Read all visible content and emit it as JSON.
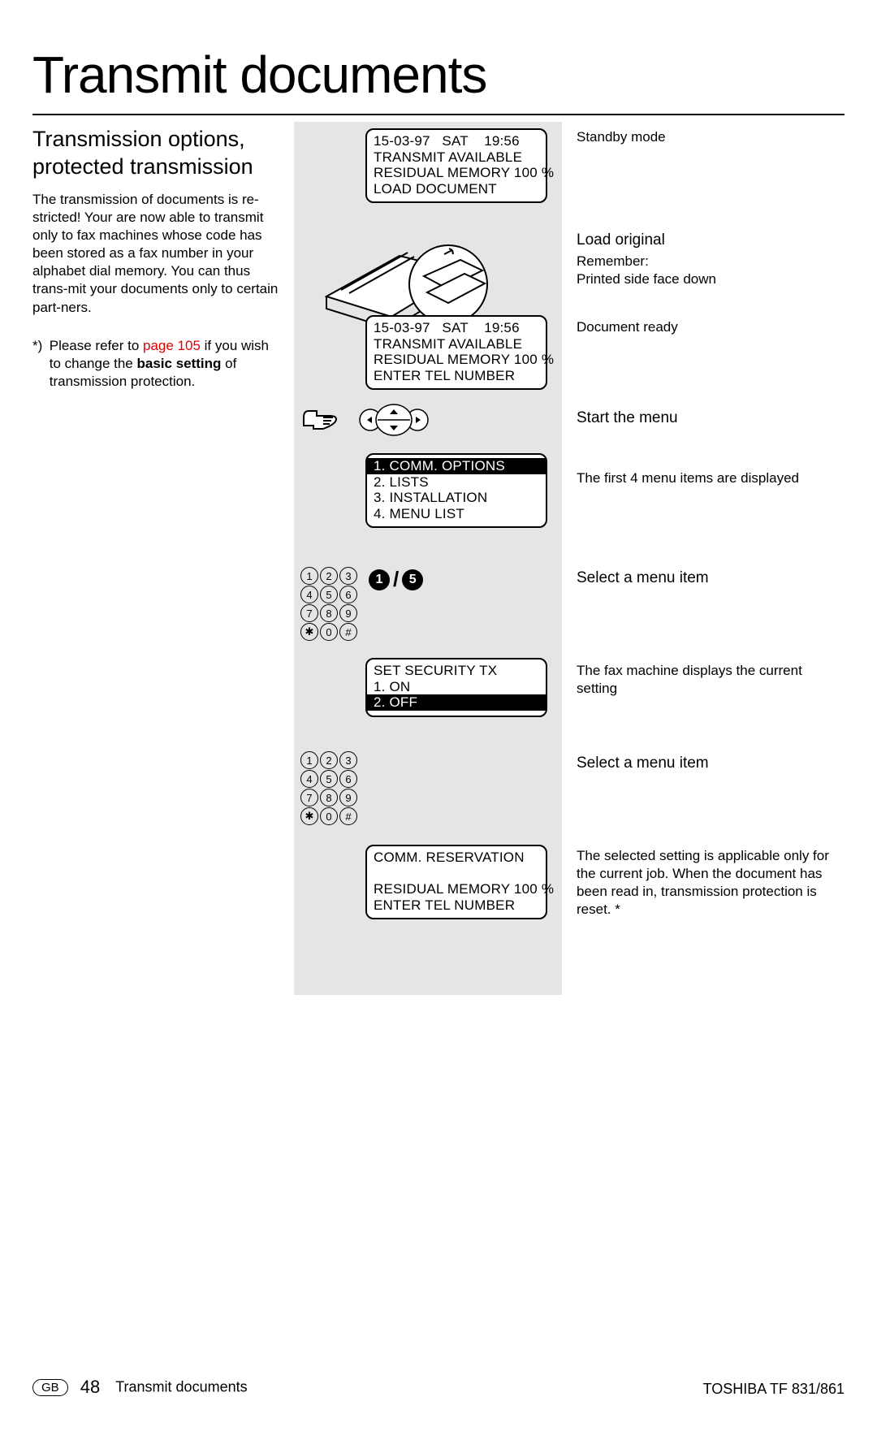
{
  "title": "Transmit documents",
  "subtitle_l1": "Transmission options,",
  "subtitle_l2": "protected transmission",
  "body": "The transmission of documents is re-stricted! Your are now able to transmit only to fax machines whose code has been stored as a fax number in your alphabet dial memory. You can thus trans-mit your documents only to certain part-ners.",
  "footnote_mark": "*)",
  "footnote_pre": "Please refer to ",
  "footnote_link": "page 105",
  "footnote_mid": " if you wish to change the ",
  "footnote_bold": "basic setting",
  "footnote_post": " of transmission protection.",
  "lcd1": {
    "l1": "15-03-97   SAT    19:56",
    "l2": "TRANSMIT AVAILABLE",
    "l3": "RESIDUAL MEMORY 100 %",
    "l4": "LOAD DOCUMENT"
  },
  "lcd2": {
    "l1": "15-03-97   SAT    19:56",
    "l2": "TRANSMIT AVAILABLE",
    "l3": "RESIDUAL MEMORY 100 %",
    "l4": "ENTER TEL NUMBER"
  },
  "lcd3": {
    "l1": "1. COMM. OPTIONS",
    "l2": "2. LISTS",
    "l3": "3. INSTALLATION",
    "l4": "4. MENU LIST"
  },
  "sel": {
    "a": "1",
    "b": "5"
  },
  "lcd4": {
    "l1": "SET SECURITY TX",
    "l2": "1. ON",
    "l3": "2. OFF"
  },
  "lcd5": {
    "l1": "COMM. RESERVATION",
    "l2": "",
    "l3": "RESIDUAL MEMORY 100 %",
    "l4": "ENTER TEL NUMBER"
  },
  "keypad": [
    [
      "1",
      "2",
      "3"
    ],
    [
      "4",
      "5",
      "6"
    ],
    [
      "7",
      "8",
      "9"
    ],
    [
      "✱",
      "0",
      "#"
    ]
  ],
  "right": {
    "standby": "Standby mode",
    "load_h": "Load original",
    "load_t1": "Remember:",
    "load_t2": "Printed side face down",
    "ready": "Document ready",
    "menu_h": "Start the menu",
    "menu_t": "The first 4 menu items are displayed",
    "sel1_h": "Select a menu item",
    "sel1_t": "The fax machine displays the current setting",
    "sel2_h": "Select a menu item",
    "sel2_t": "The selected setting is applicable only for the current job. When the document has been read in, transmission protection is reset. *"
  },
  "footer": {
    "gb": "GB",
    "page": "48",
    "title": "Transmit documents",
    "model": "TOSHIBA  TF 831/861"
  }
}
